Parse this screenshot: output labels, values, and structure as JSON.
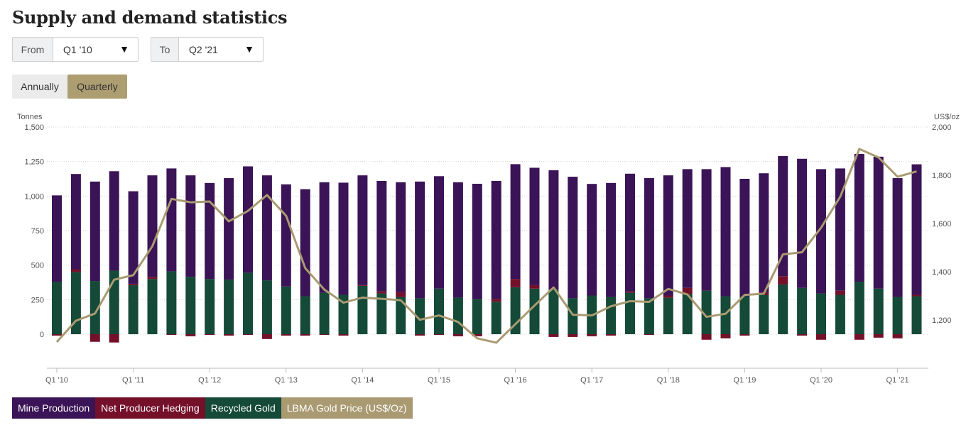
{
  "title": "Supply and demand statistics",
  "from": {
    "label": "From",
    "value": "Q1 '10"
  },
  "to": {
    "label": "To",
    "value": "Q2 '21"
  },
  "toggles": {
    "annually": "Annually",
    "quarterly": "Quarterly"
  },
  "colors": {
    "mine": "#3a1456",
    "hedge": "#74102a",
    "recycled": "#144a37",
    "price": "#a99a72",
    "accent": "#ad9e71"
  },
  "chart_data": {
    "type": "bar",
    "left_axis_label": "Tonnes",
    "right_axis_label": "US$/oz",
    "left_ticks": [
      "1,500",
      "1,250",
      "1,000",
      "750",
      "500",
      "250",
      "0"
    ],
    "right_ticks": [
      "2,000",
      "1,800",
      "1,600",
      "1,400",
      "1,200"
    ],
    "ylim_left": [
      0,
      1500
    ],
    "ylim_right": [
      1200,
      2000
    ],
    "x_tick_labels": [
      "Q1 '10",
      "Q1 '11",
      "Q1 '12",
      "Q1 '13",
      "Q1 '14",
      "Q1 '15",
      "Q1 '16",
      "Q1 '17",
      "Q1 '18",
      "Q1 '19",
      "Q1 '20",
      "Q1 '21"
    ],
    "quarters": [
      "Q1 '10",
      "Q2 '10",
      "Q3 '10",
      "Q4 '10",
      "Q1 '11",
      "Q2 '11",
      "Q3 '11",
      "Q4 '11",
      "Q1 '12",
      "Q2 '12",
      "Q3 '12",
      "Q4 '12",
      "Q1 '13",
      "Q2 '13",
      "Q3 '13",
      "Q4 '13",
      "Q1 '14",
      "Q2 '14",
      "Q3 '14",
      "Q4 '14",
      "Q1 '15",
      "Q2 '15",
      "Q3 '15",
      "Q4 '15",
      "Q1 '16",
      "Q2 '16",
      "Q3 '16",
      "Q4 '16",
      "Q1 '17",
      "Q2 '17",
      "Q3 '17",
      "Q4 '17",
      "Q1 '18",
      "Q2 '18",
      "Q3 '18",
      "Q4 '18",
      "Q1 '19",
      "Q2 '19",
      "Q3 '19",
      "Q4 '19",
      "Q1 '20",
      "Q2 '20",
      "Q3 '20",
      "Q4 '20",
      "Q1 '21",
      "Q2 '21"
    ],
    "series": [
      {
        "name": "Mine Production",
        "values": [
          625,
          690,
          720,
          720,
          670,
          735,
          745,
          735,
          695,
          735,
          770,
          760,
          740,
          775,
          800,
          812,
          795,
          800,
          795,
          845,
          814,
          835,
          834,
          855,
          831,
          850,
          862,
          880,
          808,
          825,
          852,
          870,
          870,
          860,
          880,
          935,
          850,
          860,
          870,
          935,
          900,
          885,
          925,
          955,
          860,
          945
        ]
      },
      {
        "name": "Net Producer Hedging",
        "values": [
          -10,
          20,
          -55,
          -60,
          10,
          15,
          -5,
          -15,
          -5,
          -10,
          -5,
          -35,
          -10,
          -10,
          -5,
          -10,
          5,
          15,
          35,
          -10,
          -5,
          -15,
          -15,
          20,
          60,
          25,
          -20,
          -20,
          -15,
          -10,
          10,
          -5,
          15,
          45,
          -40,
          -30,
          -10,
          20,
          60,
          -10,
          -40,
          30,
          -40,
          -25,
          -30,
          10
        ]
      },
      {
        "name": "Recycled Gold",
        "values": [
          380,
          450,
          385,
          460,
          355,
          400,
          455,
          415,
          400,
          395,
          445,
          390,
          345,
          275,
          300,
          285,
          350,
          295,
          270,
          260,
          330,
          265,
          255,
          235,
          340,
          330,
          325,
          260,
          280,
          270,
          300,
          260,
          265,
          290,
          315,
          275,
          275,
          285,
          360,
          335,
          295,
          285,
          380,
          330,
          270,
          275
        ]
      },
      {
        "name": "LBMA Gold Price (US$/Oz)",
        "values": [
          1109,
          1197,
          1227,
          1367,
          1386,
          1506,
          1702,
          1688,
          1691,
          1609,
          1652,
          1718,
          1632,
          1415,
          1326,
          1272,
          1293,
          1288,
          1282,
          1201,
          1219,
          1192,
          1124,
          1106,
          1183,
          1260,
          1335,
          1222,
          1219,
          1257,
          1278,
          1275,
          1329,
          1306,
          1213,
          1226,
          1304,
          1309,
          1472,
          1481,
          1583,
          1711,
          1909,
          1874,
          1794,
          1816
        ]
      }
    ]
  },
  "legend": [
    "Mine Production",
    "Net Producer Hedging",
    "Recycled Gold",
    "LBMA Gold Price (US$/Oz)"
  ]
}
